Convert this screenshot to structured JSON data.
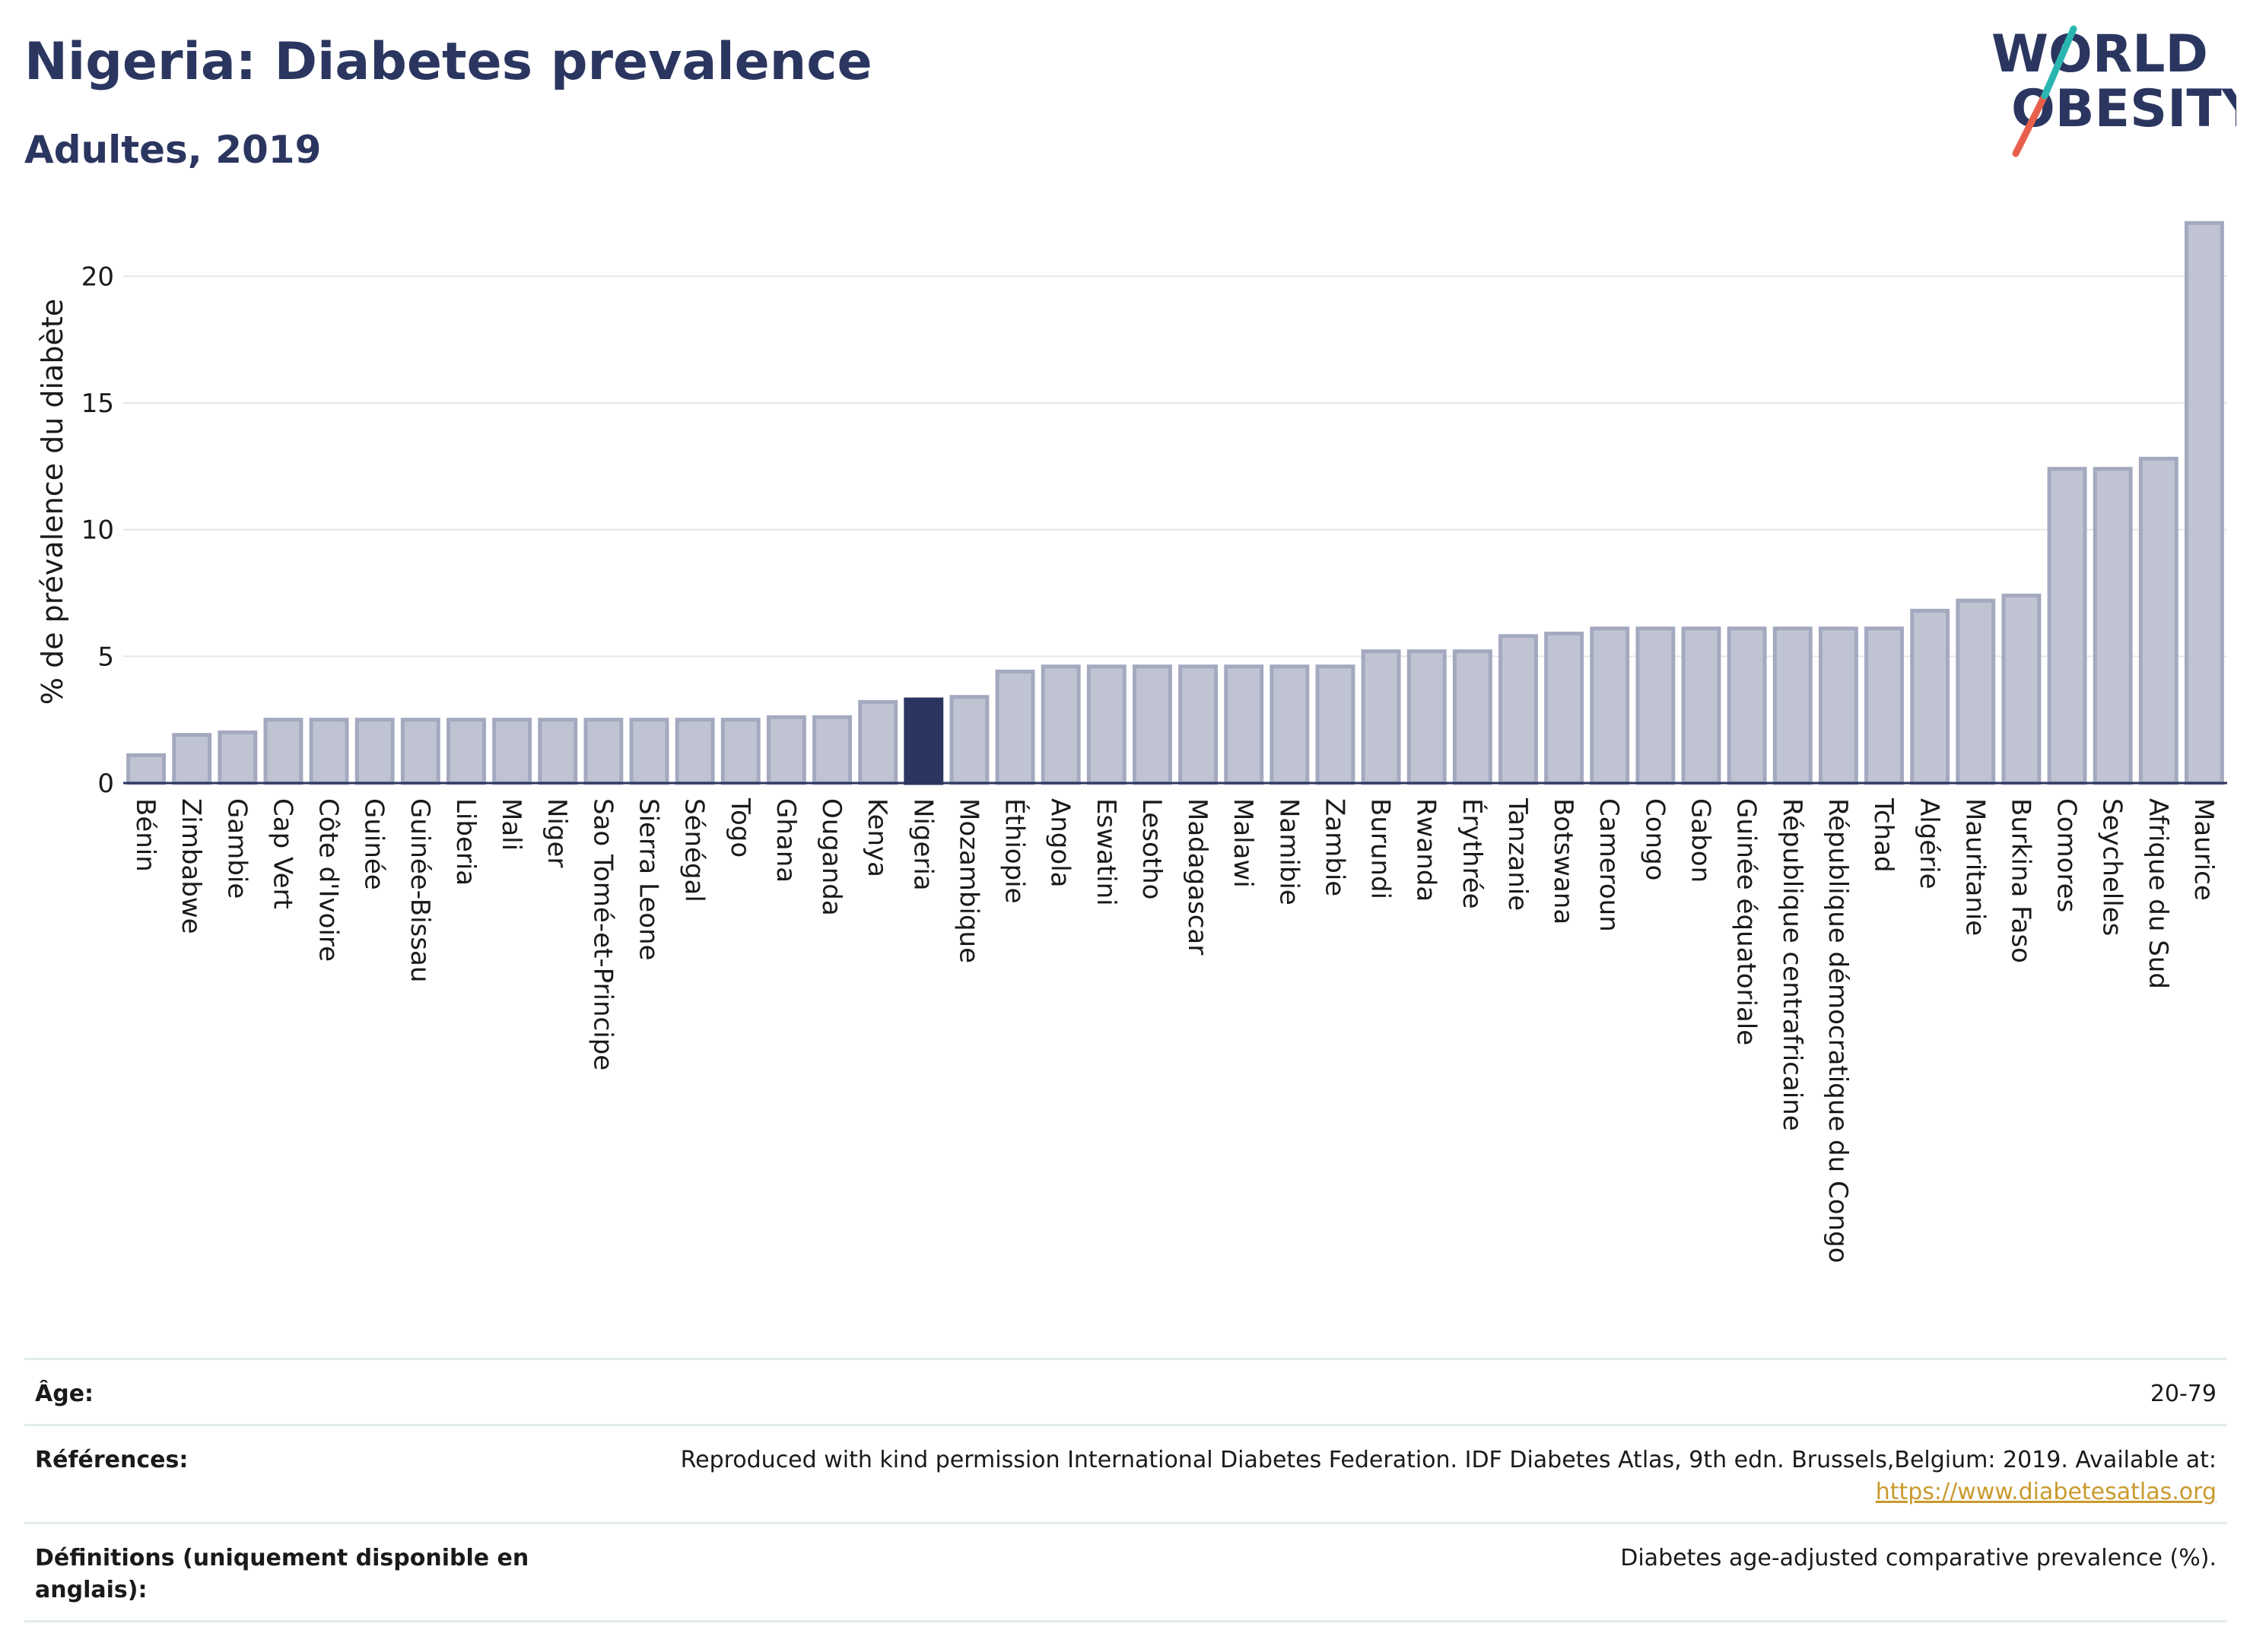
{
  "header": {
    "title": "Nigeria: Diabetes prevalence",
    "subtitle": "Adultes, 2019"
  },
  "logo": {
    "line1": "WORLD",
    "line2": "OBESITY",
    "accent_red": "#e8604c",
    "accent_teal": "#2ab6b0"
  },
  "colors": {
    "highlight": "#2b3660",
    "bar": "#c0c4d2",
    "bar_edge": "#a3a9bf"
  },
  "chart_data": {
    "type": "bar",
    "title": "Nigeria: Diabetes prevalence",
    "subtitle": "Adultes, 2019",
    "xlabel": "",
    "ylabel": "% de prévalence du diabète",
    "ylim": [
      0,
      22.5
    ],
    "yticks": [
      0,
      5,
      10,
      15,
      20
    ],
    "grid": true,
    "highlight": "Nigeria",
    "categories": [
      "Bénin",
      "Zimbabwe",
      "Gambie",
      "Cap Vert",
      "Côte d'Ivoire",
      "Guinée",
      "Guinée-Bissau",
      "Liberia",
      "Mali",
      "Niger",
      "Sao Tomé-et-Principe",
      "Sierra Leone",
      "Sénégal",
      "Togo",
      "Ghana",
      "Ouganda",
      "Kenya",
      "Nigeria",
      "Mozambique",
      "Éthiopie",
      "Angola",
      "Eswatini",
      "Lesotho",
      "Madagascar",
      "Malawi",
      "Namibie",
      "Zambie",
      "Burundi",
      "Rwanda",
      "Érythrée",
      "Tanzanie",
      "Botswana",
      "Cameroun",
      "Congo",
      "Gabon",
      "Guinée équatoriale",
      "République centrafricaine",
      "République démocratique du Congo",
      "Tchad",
      "Algérie",
      "Mauritanie",
      "Burkina Faso",
      "Comores",
      "Seychelles",
      "Afrique du Sud",
      "Maurice"
    ],
    "values": [
      1.1,
      1.9,
      2.0,
      2.5,
      2.5,
      2.5,
      2.5,
      2.5,
      2.5,
      2.5,
      2.5,
      2.5,
      2.5,
      2.5,
      2.6,
      2.6,
      3.2,
      3.3,
      3.4,
      4.4,
      4.6,
      4.6,
      4.6,
      4.6,
      4.6,
      4.6,
      4.6,
      5.2,
      5.2,
      5.2,
      5.8,
      5.9,
      6.1,
      6.1,
      6.1,
      6.1,
      6.1,
      6.1,
      6.1,
      6.8,
      7.2,
      7.4,
      12.4,
      12.4,
      12.8,
      22.1
    ]
  },
  "meta": {
    "age_label": "Âge:",
    "age_value": "20-79",
    "ref_label": "Références:",
    "ref_text": "Reproduced with kind permission International Diabetes Federation. IDF Diabetes Atlas, 9th edn. Brussels,Belgium: 2019. Available at:",
    "ref_link": "https://www.diabetesatlas.org",
    "def_label_1": "Définitions (uniquement disponible en",
    "def_label_2": "anglais):",
    "def_value": "Diabetes age-adjusted comparative prevalence (%)."
  }
}
